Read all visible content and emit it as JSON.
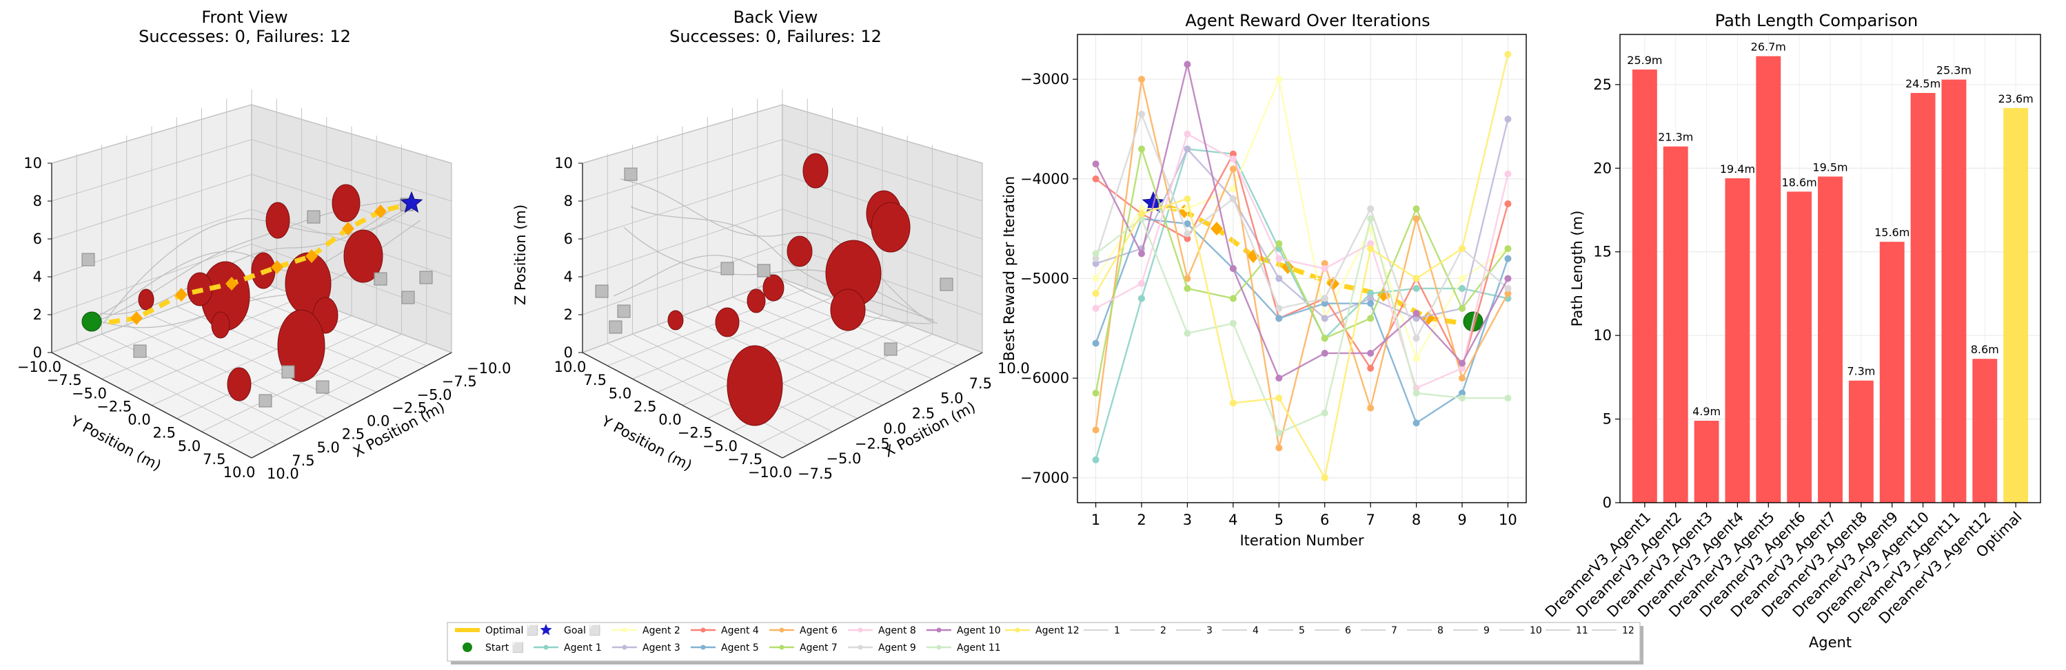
{
  "front_view": {
    "title": "Front View",
    "subtitle": "Successes: 0, Failures: 12",
    "x_label": "X Position (m)",
    "y_label": "Y Position (m)",
    "z_label": "",
    "z_ticks": [
      "0",
      "2",
      "4",
      "6",
      "8",
      "10"
    ],
    "x_ticks": [
      "10.0",
      "7.5",
      "5.0",
      "2.5",
      "0.0",
      "−2.5",
      "−5.0",
      "−7.5",
      "−10.0"
    ],
    "y_ticks": [
      "−10.0",
      "−7.5",
      "−5.0",
      "−2.5",
      "0.0",
      "2.5",
      "5.0",
      "7.5",
      "10.0"
    ]
  },
  "back_view": {
    "title": "Back View",
    "subtitle": "Successes: 0, Failures: 12",
    "x_label": "X Position (m)",
    "y_label": "Y Position (m)",
    "z_label": "Z Position (m)",
    "z_ticks": [
      "0",
      "2",
      "4",
      "6",
      "8",
      "10"
    ],
    "x_ticks": [
      "−7.5",
      "−5.0",
      "−2.5",
      "0.0",
      "2.5",
      "5.0",
      "7.5",
      "10.0"
    ],
    "y_ticks": [
      "10.0",
      "7.5",
      "5.0",
      "2.5",
      "0.0",
      "−2.5",
      "−5.0",
      "−7.5",
      "−10.0"
    ]
  },
  "chart_data": [
    {
      "type": "line",
      "title": "Agent Reward Over Iterations",
      "xlabel": "Iteration Number",
      "ylabel": "Best Reward per Iteration",
      "x": [
        1,
        2,
        3,
        4,
        5,
        6,
        7,
        8,
        9,
        10
      ],
      "xlim": [
        0.6,
        10.4
      ],
      "ylim": [
        -7250,
        -2550
      ],
      "y_ticks": [
        -7000,
        -6000,
        -5000,
        -4000,
        -3000
      ],
      "y_tick_labels": [
        "−7000",
        "−6000",
        "−5000",
        "−4000",
        "−3000"
      ],
      "grid": true,
      "series": [
        {
          "name": "Agent 1",
          "color": "#8dd3c7",
          "values": [
            -6820,
            -5200,
            -3700,
            -3750,
            -4700,
            -5600,
            -5150,
            -5100,
            -5100,
            -5200
          ]
        },
        {
          "name": "Agent 2",
          "color": "#ffffb3",
          "values": [
            -5000,
            -4300,
            -4300,
            -4100,
            -3000,
            -5400,
            -4500,
            -5800,
            -5000,
            -4700
          ]
        },
        {
          "name": "Agent 3",
          "color": "#bebada",
          "values": [
            -4850,
            -4700,
            -3700,
            -4200,
            -5000,
            -5400,
            -5200,
            -5400,
            -5300,
            -3400
          ]
        },
        {
          "name": "Agent 4",
          "color": "#fb8072",
          "values": [
            -4000,
            -4350,
            -4600,
            -3750,
            -5400,
            -5200,
            -5900,
            -5000,
            -5900,
            -4250
          ]
        },
        {
          "name": "Agent 5",
          "color": "#80b1d3",
          "values": [
            -5650,
            -4400,
            -4450,
            -4900,
            -5400,
            -5250,
            -5250,
            -6450,
            -6150,
            -4800
          ]
        },
        {
          "name": "Agent 6",
          "color": "#fdb462",
          "values": [
            -6520,
            -3000,
            -5000,
            -3900,
            -6700,
            -4850,
            -6300,
            -4400,
            -6000,
            -5150
          ]
        },
        {
          "name": "Agent 7",
          "color": "#b3de69",
          "values": [
            -6150,
            -3700,
            -5100,
            -5200,
            -4650,
            -5600,
            -5400,
            -4300,
            -5300,
            -4700
          ]
        },
        {
          "name": "Agent 8",
          "color": "#fccde5",
          "values": [
            -5300,
            -5050,
            -3550,
            -3800,
            -4800,
            -4900,
            -4650,
            -6100,
            -5900,
            -3950
          ]
        },
        {
          "name": "Agent 9",
          "color": "#d9d9d9",
          "values": [
            -4800,
            -3350,
            -4550,
            -4200,
            -5300,
            -5200,
            -4300,
            -5600,
            -4700,
            -5100
          ]
        },
        {
          "name": "Agent 10",
          "color": "#bc80bd",
          "values": [
            -3850,
            -4750,
            -2850,
            -4900,
            -6000,
            -5750,
            -5750,
            -5350,
            -5850,
            -5000
          ]
        },
        {
          "name": "Agent 11",
          "color": "#ccebc5",
          "values": [
            -4750,
            -4400,
            -5550,
            -5450,
            -6550,
            -6350,
            -4400,
            -6150,
            -6200,
            -6200
          ]
        },
        {
          "name": "Agent 12",
          "color": "#ffed6f",
          "values": [
            -5150,
            -4350,
            -4200,
            -6250,
            -6200,
            -7000,
            -4700,
            -5000,
            -4700,
            -2750
          ]
        }
      ]
    },
    {
      "type": "bar",
      "title": "Path Length Comparison",
      "xlabel": "Agent",
      "ylabel": "Path Length (m)",
      "ylim": [
        0,
        28
      ],
      "y_ticks": [
        0,
        5,
        10,
        15,
        20,
        25
      ],
      "categories": [
        "DreamerV3_Agent1",
        "DreamerV3_Agent2",
        "DreamerV3_Agent3",
        "DreamerV3_Agent4",
        "DreamerV3_Agent5",
        "DreamerV3_Agent6",
        "DreamerV3_Agent7",
        "DreamerV3_Agent8",
        "DreamerV3_Agent9",
        "DreamerV3_Agent10",
        "DreamerV3_Agent11",
        "DreamerV3_Agent12",
        "Optimal"
      ],
      "values": [
        25.9,
        21.3,
        4.9,
        19.4,
        26.7,
        18.6,
        19.5,
        7.3,
        15.6,
        24.5,
        25.3,
        8.6,
        23.6
      ],
      "value_labels": [
        "25.9m",
        "21.3m",
        "4.9m",
        "19.4m",
        "26.7m",
        "18.6m",
        "19.5m",
        "7.3m",
        "15.6m",
        "24.5m",
        "25.3m",
        "8.6m",
        "23.6m"
      ],
      "colors": [
        "#ff4d4d",
        "#ff4d4d",
        "#ff4d4d",
        "#ff4d4d",
        "#ff4d4d",
        "#ff4d4d",
        "#ff4d4d",
        "#ff4d4d",
        "#ff4d4d",
        "#ff4d4d",
        "#ff4d4d",
        "#ff4d4d",
        "#ffe14d"
      ],
      "grid": true
    }
  ],
  "legend": {
    "items": [
      {
        "label": "Optimal ⬜",
        "kind": "thickline",
        "color": "#ffd21f"
      },
      {
        "label": "Start ⬜",
        "kind": "circle",
        "color": "#138a13"
      },
      {
        "label": "Goal ⬜",
        "kind": "star",
        "color": "#1a1acc"
      },
      {
        "label": "Agent 1",
        "kind": "line",
        "color": "#8dd3c7"
      },
      {
        "label": "Agent 2",
        "kind": "line",
        "color": "#ffffb3"
      },
      {
        "label": "Agent 3",
        "kind": "line",
        "color": "#bebada"
      },
      {
        "label": "Agent 4",
        "kind": "line",
        "color": "#fb8072"
      },
      {
        "label": "Agent 5",
        "kind": "line",
        "color": "#80b1d3"
      },
      {
        "label": "Agent 6",
        "kind": "line",
        "color": "#fdb462"
      },
      {
        "label": "Agent 7",
        "kind": "line",
        "color": "#b3de69"
      },
      {
        "label": "Agent 8",
        "kind": "line",
        "color": "#fccde5"
      },
      {
        "label": "Agent 9",
        "kind": "line",
        "color": "#d9d9d9"
      },
      {
        "label": "Agent 10",
        "kind": "line",
        "color": "#bc80bd"
      },
      {
        "label": "Agent 11",
        "kind": "line",
        "color": "#ccebc5"
      },
      {
        "label": "Agent 12",
        "kind": "line",
        "color": "#ffed6f"
      },
      {
        "label": "1",
        "kind": "plain",
        "color": "#c8c8c8"
      },
      {
        "label": "2",
        "kind": "plain",
        "color": "#c8c8c8"
      },
      {
        "label": "3",
        "kind": "plain",
        "color": "#c8c8c8"
      },
      {
        "label": "4",
        "kind": "plain",
        "color": "#c8c8c8"
      },
      {
        "label": "5",
        "kind": "plain",
        "color": "#c8c8c8"
      },
      {
        "label": "6",
        "kind": "plain",
        "color": "#c8c8c8"
      },
      {
        "label": "7",
        "kind": "plain",
        "color": "#c8c8c8"
      },
      {
        "label": "8",
        "kind": "plain",
        "color": "#c8c8c8"
      },
      {
        "label": "9",
        "kind": "plain",
        "color": "#c8c8c8"
      },
      {
        "label": "10",
        "kind": "plain",
        "color": "#c8c8c8"
      },
      {
        "label": "11",
        "kind": "plain",
        "color": "#c8c8c8"
      },
      {
        "label": "12",
        "kind": "plain",
        "color": "#c8c8c8"
      }
    ]
  }
}
